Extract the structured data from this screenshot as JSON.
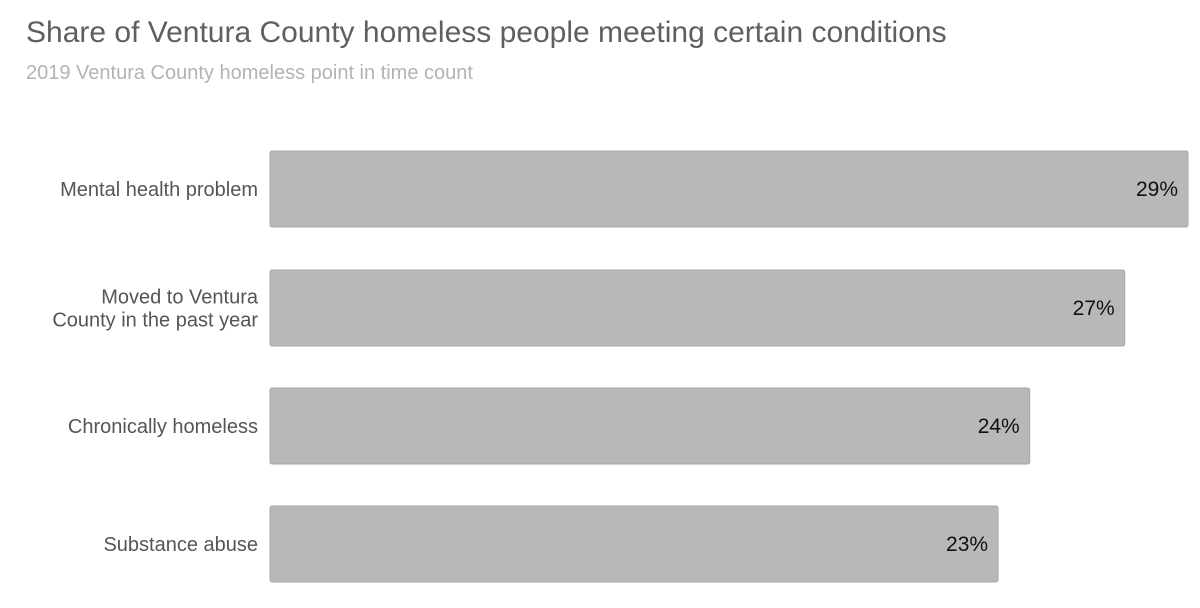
{
  "chart_data": {
    "type": "bar",
    "orientation": "horizontal",
    "title": "Share of Ventura County homeless people meeting certain conditions",
    "subtitle": "2019 Ventura County homeless point in time count",
    "categories": [
      [
        "Mental health problem"
      ],
      [
        "Moved to Ventura",
        "County in the past year"
      ],
      [
        "Chronically homeless"
      ],
      [
        "Substance abuse"
      ]
    ],
    "values": [
      29,
      27,
      24,
      23
    ],
    "value_labels": [
      "29%",
      "27%",
      "24%",
      "23%"
    ],
    "xlim": [
      0,
      29
    ],
    "grid": false,
    "bar_color": "#b8b8b8",
    "bar_border_color": "#a9a9a9"
  }
}
